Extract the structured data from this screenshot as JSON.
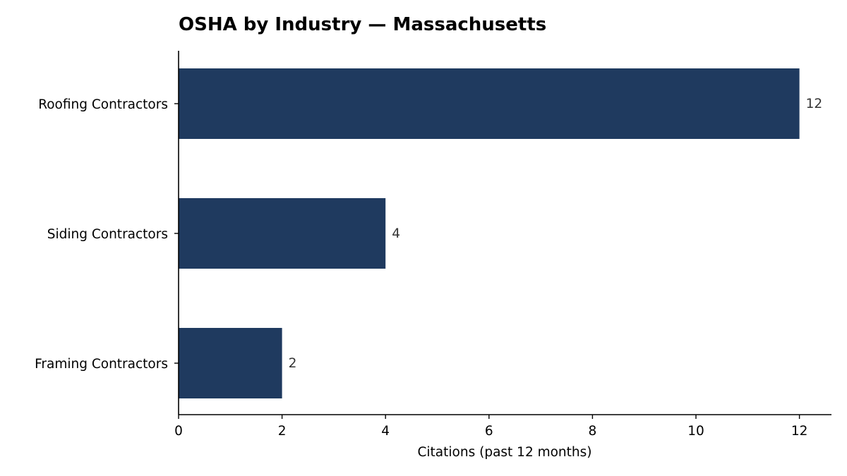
{
  "chart_data": {
    "type": "bar",
    "orientation": "horizontal",
    "title": "OSHA by Industry — Massachusetts",
    "xlabel": "Citations (past 12 months)",
    "ylabel": "",
    "categories": [
      "Roofing Contractors",
      "Siding Contractors",
      "Framing Contractors"
    ],
    "values": [
      12,
      4,
      2
    ],
    "data_labels": [
      "12",
      "4",
      "2"
    ],
    "xlim": [
      0,
      12.6
    ],
    "x_ticks": [
      0,
      2,
      4,
      6,
      8,
      10,
      12
    ],
    "x_tick_labels": [
      "0",
      "2",
      "4",
      "6",
      "8",
      "10",
      "12"
    ],
    "bar_color": "#1f3a5f",
    "grid": false,
    "legend": "none"
  }
}
